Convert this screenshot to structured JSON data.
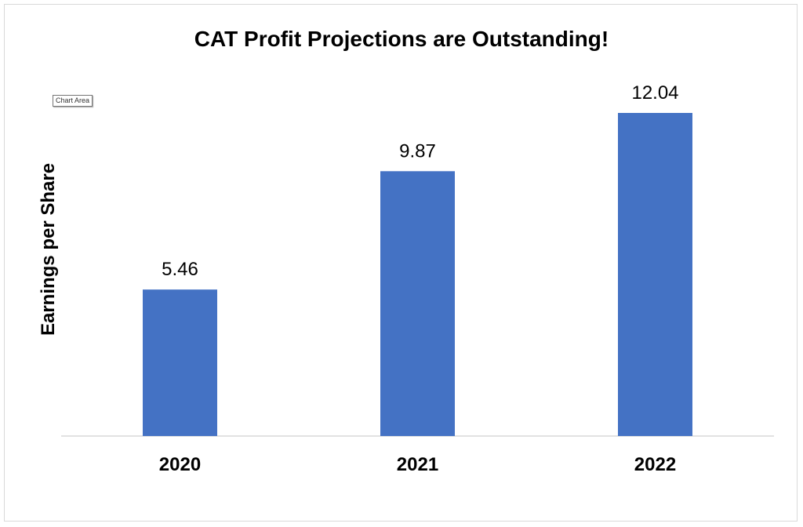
{
  "tooltip": "Chart Area",
  "chart_data": {
    "type": "bar",
    "title": "CAT Profit Projections are Outstanding!",
    "xlabel": "",
    "ylabel": "Earnings per Share",
    "categories": [
      "2020",
      "2021",
      "2022"
    ],
    "values": [
      5.46,
      9.87,
      12.04
    ],
    "data_labels": [
      "5.46",
      "9.87",
      "12.04"
    ],
    "ylim": [
      0,
      12.04
    ],
    "grid": false,
    "legend": "none",
    "bar_color": "#4472C4",
    "axis_color": "#d9d9d9"
  }
}
